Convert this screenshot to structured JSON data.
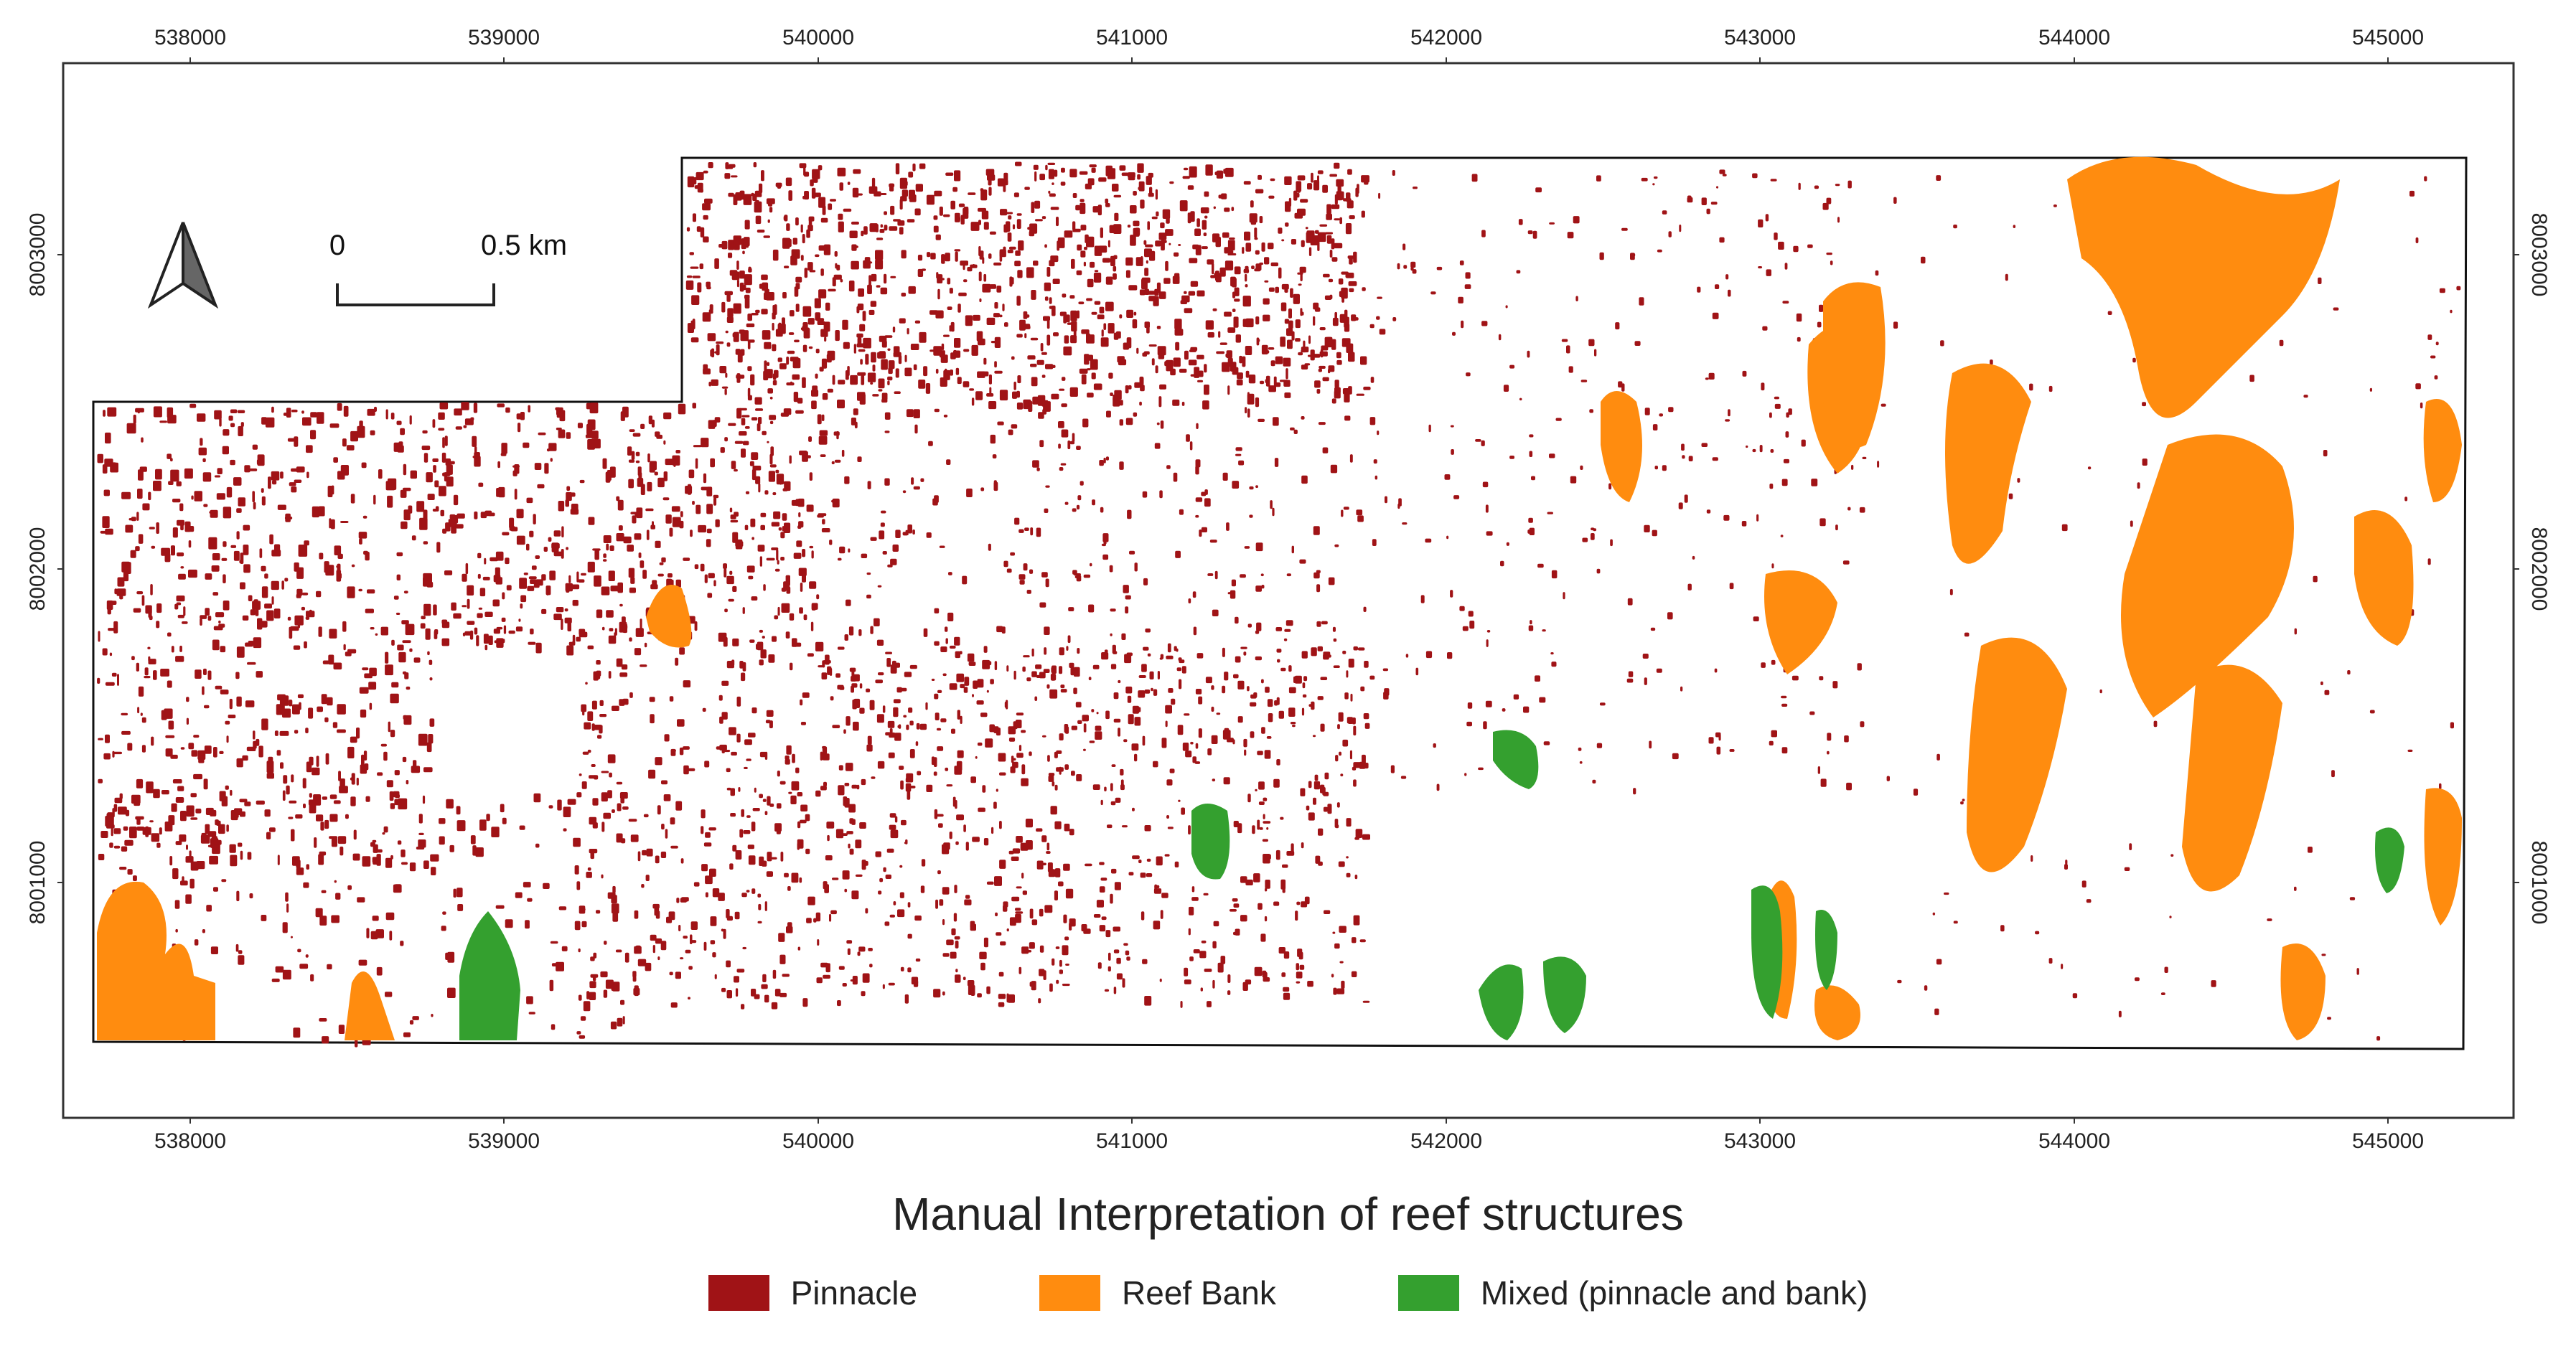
{
  "map": {
    "title": "Manual Interpretation of reef structures",
    "x_ticks": [
      "538000",
      "539000",
      "540000",
      "541000",
      "542000",
      "543000",
      "544000",
      "545000"
    ],
    "y_ticks": [
      "8003000",
      "8002000",
      "8001000"
    ],
    "scale_bar": {
      "start_label": "0",
      "end_label": "0.5 km"
    },
    "north_arrow": "north-arrow-icon"
  },
  "legend": [
    {
      "label": "Pinnacle",
      "color": "#a01316"
    },
    {
      "label": "Reef Bank",
      "color": "#ff8c0f"
    },
    {
      "label": "Mixed (pinnacle and bank)",
      "color": "#34a02f"
    }
  ]
}
